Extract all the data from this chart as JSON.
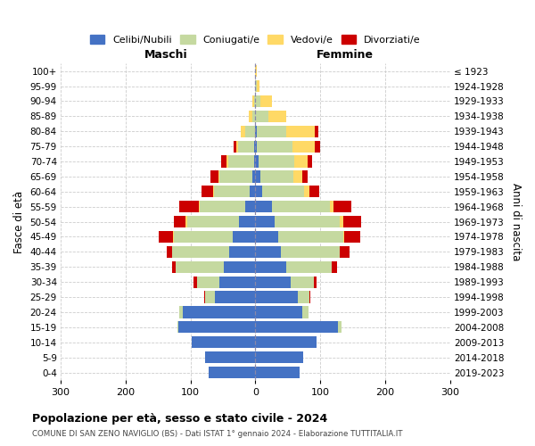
{
  "age_groups": [
    "0-4",
    "5-9",
    "10-14",
    "15-19",
    "20-24",
    "25-29",
    "30-34",
    "35-39",
    "40-44",
    "45-49",
    "50-54",
    "55-59",
    "60-64",
    "65-69",
    "70-74",
    "75-79",
    "80-84",
    "85-89",
    "90-94",
    "95-99",
    "100+"
  ],
  "birth_years": [
    "2019-2023",
    "2014-2018",
    "2009-2013",
    "2004-2008",
    "1999-2003",
    "1994-1998",
    "1989-1993",
    "1984-1988",
    "1979-1983",
    "1974-1978",
    "1969-1973",
    "1964-1968",
    "1959-1963",
    "1954-1958",
    "1949-1953",
    "1944-1948",
    "1939-1943",
    "1934-1938",
    "1929-1933",
    "1924-1928",
    "≤ 1923"
  ],
  "colors": {
    "celibi": "#4472c4",
    "coniugati": "#c5d9a0",
    "vedovi": "#ffd966",
    "divorziati": "#cc0000"
  },
  "males": {
    "celibi": [
      72,
      78,
      98,
      118,
      112,
      62,
      55,
      48,
      40,
      35,
      25,
      15,
      8,
      5,
      2,
      2,
      0,
      0,
      0,
      0,
      0
    ],
    "coniugati": [
      0,
      0,
      0,
      2,
      5,
      15,
      35,
      75,
      88,
      90,
      80,
      70,
      55,
      50,
      40,
      25,
      15,
      5,
      2,
      0,
      0
    ],
    "vedovi": [
      0,
      0,
      0,
      0,
      0,
      0,
      0,
      0,
      0,
      2,
      2,
      2,
      2,
      2,
      2,
      2,
      8,
      5,
      2,
      0,
      0
    ],
    "divorziati": [
      0,
      0,
      0,
      0,
      0,
      2,
      5,
      5,
      8,
      22,
      18,
      30,
      18,
      12,
      8,
      5,
      0,
      0,
      0,
      0,
      0
    ]
  },
  "females": {
    "celibi": [
      68,
      74,
      94,
      128,
      72,
      65,
      55,
      48,
      40,
      35,
      30,
      25,
      10,
      8,
      5,
      2,
      2,
      0,
      0,
      0,
      0
    ],
    "coniugati": [
      0,
      0,
      0,
      5,
      10,
      18,
      35,
      70,
      90,
      100,
      100,
      90,
      65,
      50,
      55,
      55,
      45,
      20,
      8,
      2,
      0
    ],
    "vedovi": [
      0,
      0,
      0,
      0,
      0,
      0,
      0,
      0,
      0,
      2,
      5,
      5,
      8,
      15,
      20,
      35,
      45,
      28,
      18,
      5,
      2
    ],
    "divorziati": [
      0,
      0,
      0,
      0,
      0,
      2,
      5,
      8,
      15,
      25,
      28,
      28,
      15,
      8,
      8,
      8,
      5,
      0,
      0,
      0,
      0
    ]
  },
  "title": "Popolazione per età, sesso e stato civile - 2024",
  "subtitle": "COMUNE DI SAN ZENO NAVIGLIO (BS) - Dati ISTAT 1° gennaio 2024 - Elaborazione TUTTITALIA.IT",
  "xlabel_left": "Maschi",
  "xlabel_right": "Femmine",
  "ylabel_left": "Fasce di età",
  "ylabel_right": "Anni di nascita",
  "xlim": 300,
  "background_color": "#ffffff",
  "grid_color": "#cccccc",
  "legend_labels": [
    "Celibi/Nubili",
    "Coniugati/e",
    "Vedovi/e",
    "Divorziati/e"
  ]
}
